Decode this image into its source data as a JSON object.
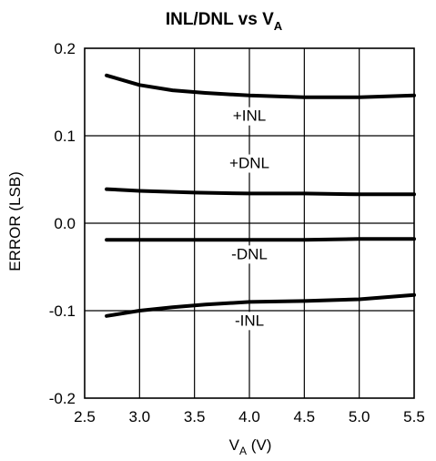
{
  "chart_data": {
    "type": "line",
    "title": {
      "main": "INL/DNL vs V",
      "sub": "A"
    },
    "xlabel": {
      "main": "V",
      "sub": "A",
      "rest": " (V)"
    },
    "ylabel": "ERROR (LSB)",
    "xlim": [
      2.5,
      5.5
    ],
    "ylim": [
      -0.2,
      0.2
    ],
    "x_ticks": [
      "2.5",
      "3.0",
      "3.5",
      "4.0",
      "4.5",
      "5.0",
      "5.5"
    ],
    "y_ticks": [
      "0.2",
      "0.1",
      "0.0",
      "-0.1",
      "-0.2"
    ],
    "grid": true,
    "series": [
      {
        "name": "+INL",
        "x": [
          2.7,
          3.0,
          3.3,
          3.6,
          4.0,
          4.5,
          5.0,
          5.5
        ],
        "y": [
          0.169,
          0.158,
          0.152,
          0.149,
          0.146,
          0.144,
          0.144,
          0.146
        ]
      },
      {
        "name": "+DNL",
        "x": [
          2.7,
          3.0,
          3.5,
          4.0,
          4.5,
          5.0,
          5.5
        ],
        "y": [
          0.039,
          0.037,
          0.035,
          0.034,
          0.034,
          0.033,
          0.033
        ]
      },
      {
        "name": "-DNL",
        "x": [
          2.7,
          3.5,
          4.0,
          4.5,
          5.0,
          5.5
        ],
        "y": [
          -0.019,
          -0.019,
          -0.019,
          -0.019,
          -0.018,
          -0.018
        ]
      },
      {
        "name": "-INL",
        "x": [
          2.7,
          3.0,
          3.3,
          3.6,
          4.0,
          4.5,
          5.0,
          5.5
        ],
        "y": [
          -0.106,
          -0.1,
          -0.096,
          -0.093,
          -0.09,
          -0.089,
          -0.087,
          -0.082
        ]
      }
    ],
    "annotations": [
      "+INL",
      "+DNL",
      "-DNL",
      "-INL"
    ]
  }
}
